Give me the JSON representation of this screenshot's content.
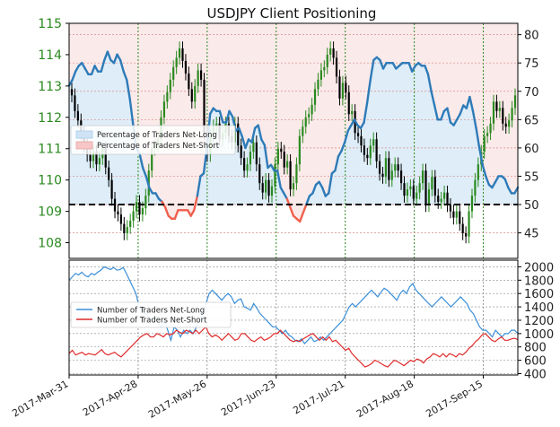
{
  "chart_data": [
    {
      "type": "line",
      "title": "USDJPY Client Positioning",
      "x_ticks": [
        "2017-Mar-31",
        "2017-Apr-28",
        "2017-May-26",
        "2017-Jun-23",
        "2017-Jul-21",
        "2017-Aug-18",
        "2017-Sep-15"
      ],
      "left_axis": {
        "ticks": [
          108,
          109,
          110,
          111,
          112,
          113,
          114,
          115
        ],
        "ylim": [
          107.5,
          115
        ],
        "color": "#2a8a1f"
      },
      "right_axis": {
        "ticks": [
          45,
          50,
          55,
          60,
          65,
          70,
          75,
          80
        ],
        "ylim": [
          40.5,
          82.0
        ]
      },
      "grid": true,
      "reference_line": {
        "value": 50,
        "style": "dashed",
        "color": "#000000"
      },
      "legend": {
        "placement": "center-left",
        "entries": [
          {
            "label": "Percentage of Traders Net-Long",
            "color": "#cfe3f5"
          },
          {
            "label": "Percentage of Traders Net-Short",
            "color": "#f7c6c6"
          }
        ]
      },
      "price_candles": {
        "up_color": "#2a8a1f",
        "down_color": "#000000",
        "close": [
          112.7,
          112.2,
          111.9,
          111.5,
          111.1,
          110.8,
          110.6,
          110.9,
          110.5,
          110.7,
          111.0,
          110.4,
          110.0,
          109.4,
          109.0,
          108.9,
          108.6,
          108.3,
          108.5,
          108.7,
          109.0,
          109.3,
          108.9,
          109.1,
          109.5,
          110.3,
          111.0,
          111.1,
          111.3,
          112.0,
          112.5,
          112.8,
          113.2,
          113.6,
          113.9,
          114.2,
          113.8,
          113.4,
          112.9,
          112.5,
          113.0,
          113.5,
          113.2,
          111.5,
          110.8,
          111.4,
          111.7,
          111.8,
          111.3,
          111.5,
          111.8,
          111.4,
          111.2,
          111.8,
          111.1,
          110.7,
          110.3,
          110.5,
          110.9,
          111.2,
          110.5,
          109.9,
          109.6,
          110.0,
          109.5,
          109.8,
          110.5,
          111.0,
          110.9,
          110.4,
          110.6,
          109.7,
          109.9,
          110.5,
          111.4,
          111.7,
          112.0,
          112.1,
          112.4,
          112.9,
          113.2,
          113.5,
          113.6,
          114.0,
          114.2,
          113.9,
          113.3,
          112.6,
          113.1,
          112.8,
          112.1,
          112.2,
          111.5,
          111.4,
          111.1,
          110.8,
          110.7,
          111.1,
          111.3,
          110.6,
          110.2,
          110.1,
          110.7,
          110.0,
          110.3,
          110.5,
          110.3,
          109.9,
          109.5,
          109.7,
          109.8,
          109.4,
          109.6,
          109.9,
          110.3,
          109.2,
          109.7,
          110.1,
          109.5,
          109.3,
          109.4,
          109.6,
          109.2,
          109.0,
          108.8,
          109.0,
          108.6,
          108.3,
          108.2,
          109.0,
          109.5,
          110.0,
          110.5,
          110.9,
          111.4,
          111.5,
          111.8,
          112.5,
          112.2,
          112.3,
          111.8,
          111.7,
          111.9,
          112.3,
          112.7
        ]
      },
      "series": [
        {
          "name": "Percentage of Traders Net-Long",
          "color": "#2e7bb8",
          "values": [
            71.0,
            72.0,
            73.5,
            74.5,
            75.0,
            74.0,
            73.0,
            73.0,
            74.5,
            73.5,
            73.5,
            75.5,
            77.0,
            75.5,
            75.0,
            76.5,
            75.5,
            73.5,
            72.0,
            68.5,
            64.0,
            60.0,
            59.0,
            56.5,
            55.0,
            53.0,
            52.0,
            52.0,
            51.0,
            50.5,
            49.5,
            48.0,
            47.5,
            47.5,
            49.0,
            49.0,
            49.0,
            49.0,
            48.0,
            49.0,
            51.5,
            55.0,
            55.5,
            60.0,
            66.0,
            67.0,
            66.5,
            66.5,
            64.5,
            64.5,
            66.5,
            65.5,
            63.0,
            63.5,
            62.0,
            60.0,
            61.5,
            61.0,
            63.5,
            64.0,
            61.5,
            60.5,
            56.5,
            57.0,
            56.0,
            56.0,
            53.0,
            52.0,
            51.0,
            49.5,
            48.0,
            47.5,
            47.0,
            48.5,
            50.0,
            51.5,
            52.0,
            53.5,
            54.0,
            53.0,
            51.5,
            52.0,
            55.5,
            56.0,
            58.5,
            59.5,
            61.0,
            63.0,
            64.0,
            65.0,
            64.0,
            63.5,
            64.5,
            68.0,
            72.0,
            75.5,
            76.0,
            75.5,
            74.0,
            75.0,
            75.0,
            75.0,
            74.0,
            74.5,
            75.0,
            75.0,
            75.0,
            73.5,
            74.5,
            75.0,
            74.5,
            74.5,
            73.0,
            70.0,
            67.5,
            65.0,
            65.0,
            66.5,
            67.0,
            64.5,
            64.0,
            65.0,
            66.0,
            67.5,
            67.0,
            69.0,
            66.5,
            63.5,
            60.0,
            57.0,
            55.0,
            53.5,
            53.0,
            54.0,
            55.0,
            55.0,
            54.5,
            53.0,
            52.0,
            52.0,
            53.0
          ]
        },
        {
          "name": "Price",
          "role": "candles"
        }
      ]
    },
    {
      "type": "line",
      "right_axis": {
        "ticks": [
          400,
          600,
          800,
          1000,
          1200,
          1400,
          1600,
          1800,
          2000
        ],
        "ylim": [
          380,
          2100
        ]
      },
      "grid": true,
      "legend": {
        "placement": "center-left",
        "entries": [
          {
            "label": "Number of Traders Net-Long",
            "color": "#3a8fd8"
          },
          {
            "label": "Number of Traders Net-Short",
            "color": "#e02a2a"
          }
        ]
      },
      "series": [
        {
          "name": "Number of Traders Net-Long",
          "color": "#3a8fd8",
          "values": [
            1800,
            1850,
            1900,
            1880,
            1920,
            1870,
            1850,
            1900,
            1880,
            1920,
            1950,
            2000,
            1980,
            1960,
            1990,
            1950,
            1960,
            1990,
            1900,
            1800,
            1700,
            1600,
            1400,
            1350,
            1300,
            1250,
            1200,
            1250,
            1150,
            1100,
            1200,
            1050,
            900,
            1100,
            1050,
            950,
            1050,
            1000,
            1050,
            1000,
            1100,
            1200,
            1300,
            1450,
            1600,
            1650,
            1600,
            1550,
            1500,
            1560,
            1600,
            1550,
            1450,
            1500,
            1520,
            1400,
            1380,
            1350,
            1450,
            1380,
            1300,
            1250,
            1200,
            1150,
            1100,
            1100,
            1050,
            1000,
            1050,
            980,
            950,
            900,
            880,
            920,
            850,
            900,
            950,
            880,
            900,
            950,
            900,
            950,
            1000,
            1050,
            1100,
            1150,
            1200,
            1300,
            1400,
            1450,
            1400,
            1450,
            1500,
            1550,
            1600,
            1650,
            1600,
            1550,
            1620,
            1680,
            1650,
            1600,
            1550,
            1500,
            1600,
            1650,
            1600,
            1700,
            1750,
            1650,
            1600,
            1550,
            1500,
            1450,
            1400,
            1450,
            1500,
            1550,
            1500,
            1450,
            1400,
            1450,
            1500,
            1550,
            1500,
            1450,
            1350,
            1300,
            1200,
            1100,
            1050,
            1050,
            1000,
            950,
            1050,
            1000,
            950,
            1000,
            1000,
            1050,
            1050,
            1000
          ]
        },
        {
          "name": "Number of Traders Net-Short",
          "color": "#e02a2a",
          "values": [
            700,
            750,
            680,
            700,
            720,
            680,
            700,
            690,
            680,
            720,
            760,
            700,
            680,
            700,
            720,
            680,
            650,
            700,
            750,
            800,
            850,
            900,
            950,
            980,
            1000,
            950,
            950,
            1000,
            980,
            950,
            1000,
            980,
            1000,
            1050,
            1020,
            1000,
            1050,
            1030,
            1000,
            1050,
            1000,
            1050,
            1100,
            1000,
            950,
            980,
            950,
            900,
            950,
            1000,
            950,
            900,
            920,
            1000,
            1000,
            950,
            900,
            880,
            920,
            950,
            900,
            920,
            950,
            1000,
            1000,
            1050,
            1000,
            950,
            900,
            880,
            900,
            880,
            920,
            950,
            980,
            1000,
            950,
            900,
            950,
            900,
            950,
            880,
            900,
            850,
            800,
            750,
            780,
            700,
            650,
            600,
            550,
            500,
            520,
            550,
            600,
            580,
            550,
            520,
            500,
            550,
            600,
            580,
            550,
            520,
            560,
            600,
            580,
            620,
            600,
            560,
            620,
            650,
            700,
            680,
            650,
            700,
            650,
            700,
            680,
            650,
            700,
            680,
            720,
            780,
            820,
            880,
            920,
            980,
            1000,
            950,
            900,
            880,
            920,
            950,
            900,
            900,
            920,
            930,
            910
          ]
        }
      ]
    }
  ]
}
